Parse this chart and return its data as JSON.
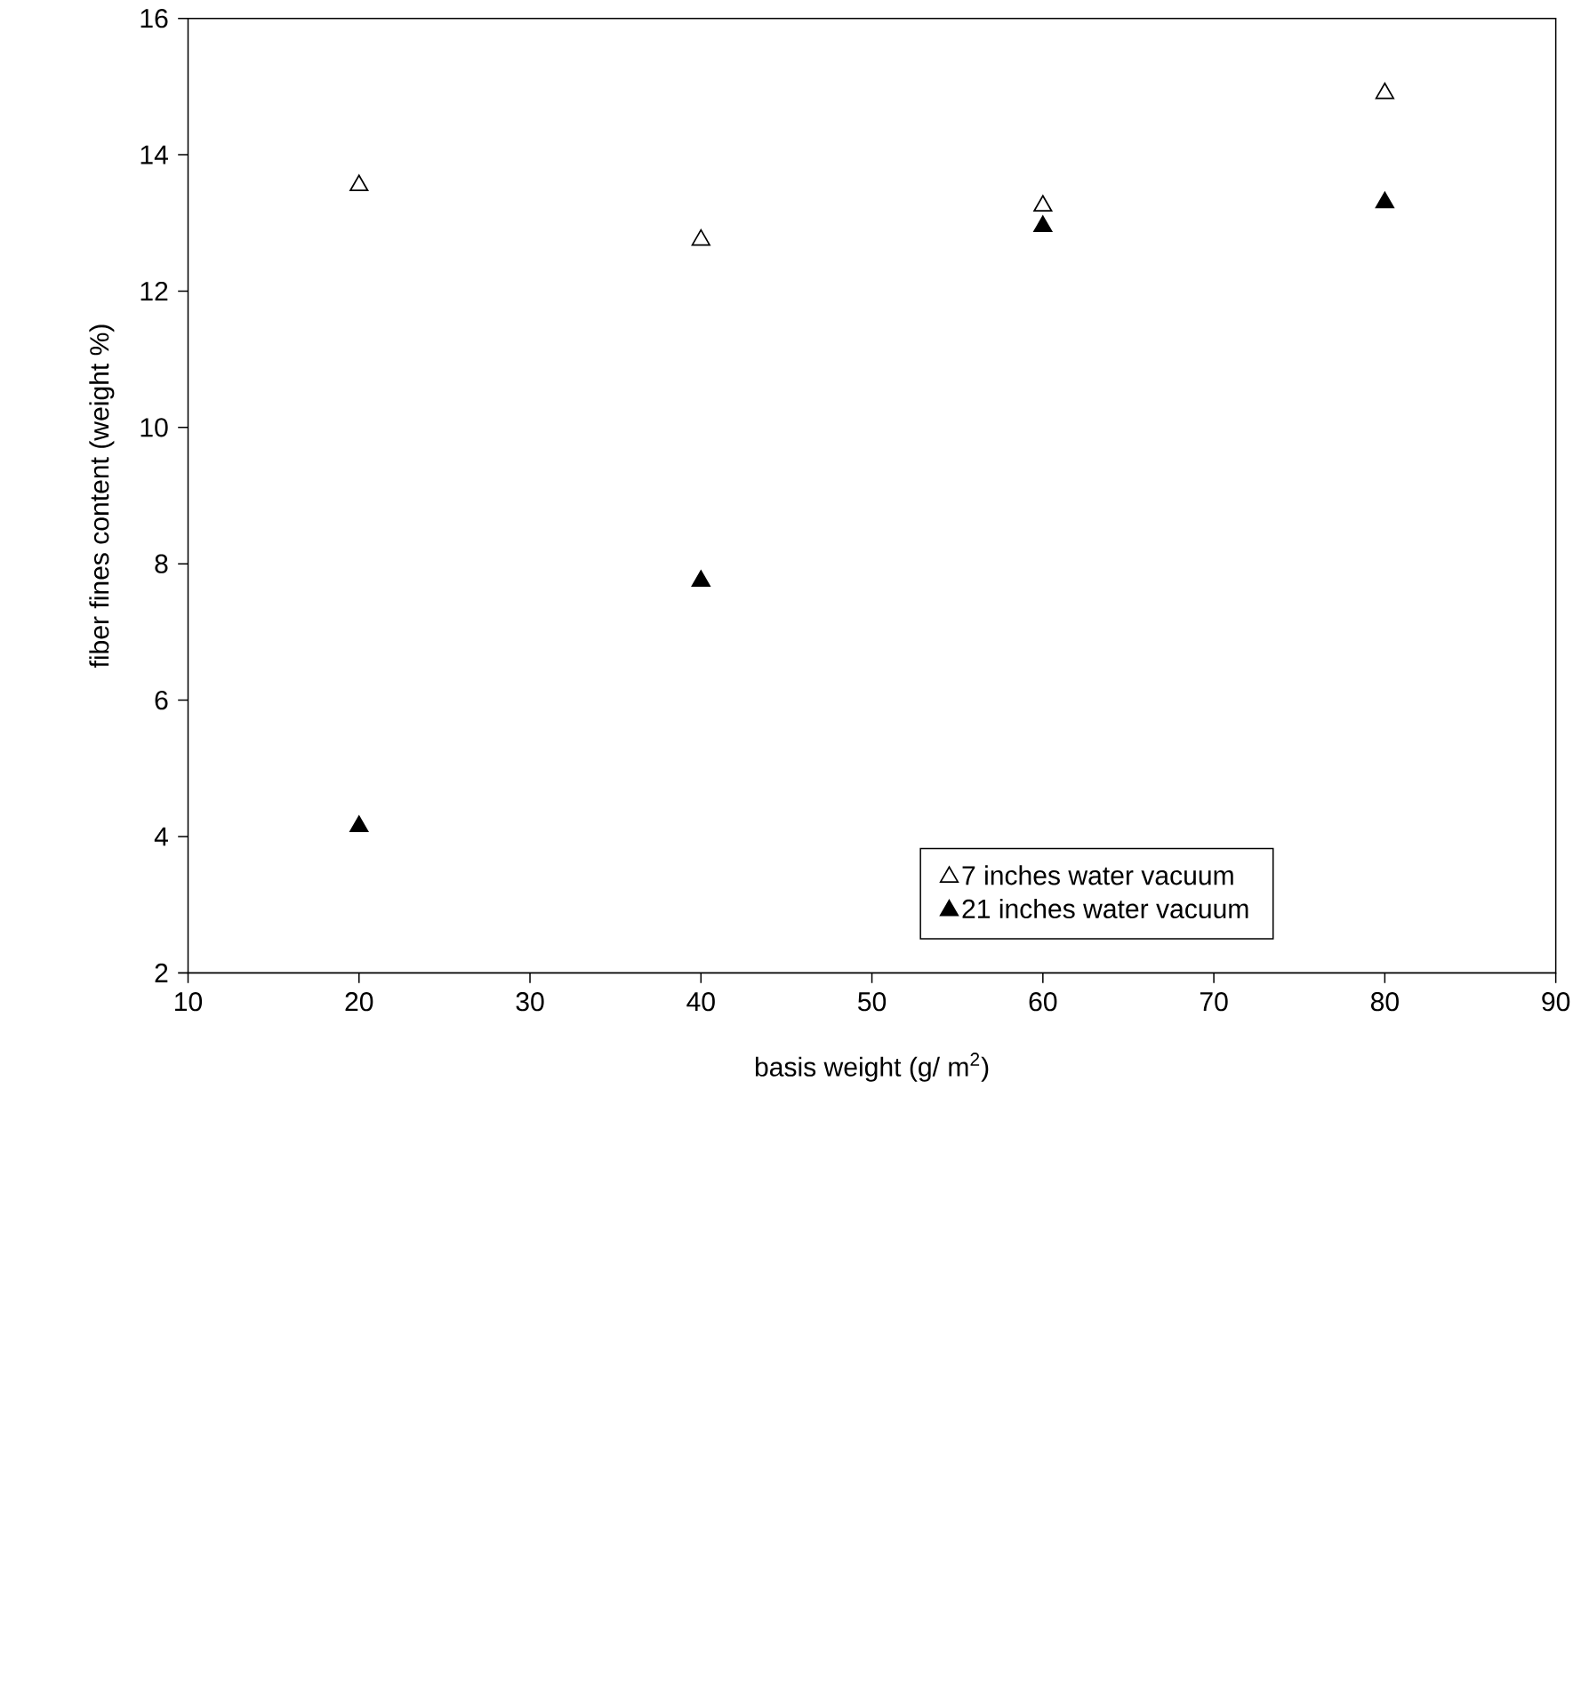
{
  "chart_data": {
    "type": "scatter",
    "xlabel": "basis weight (g/ m$^{2}$)",
    "ylabel": "fiber fines content (weight %)",
    "x": [
      20,
      40,
      60,
      80
    ],
    "series": [
      {
        "name": "7 inches water vacuum",
        "color": "#ffffff",
        "values": [
          13.55,
          12.75,
          13.25,
          14.9
        ]
      },
      {
        "name": "21 inches water vacuum",
        "color": "#000000",
        "values": [
          4.15,
          7.75,
          12.95,
          13.3
        ]
      }
    ],
    "xlim": [
      10,
      90
    ],
    "ylim": [
      2,
      16
    ],
    "xticks": [
      10,
      20,
      30,
      40,
      50,
      60,
      70,
      80,
      90
    ],
    "yticks": [
      2,
      4,
      6,
      8,
      10,
      12,
      14,
      16
    ],
    "marker": "triangle",
    "grid": false,
    "legend": "bottom right"
  }
}
